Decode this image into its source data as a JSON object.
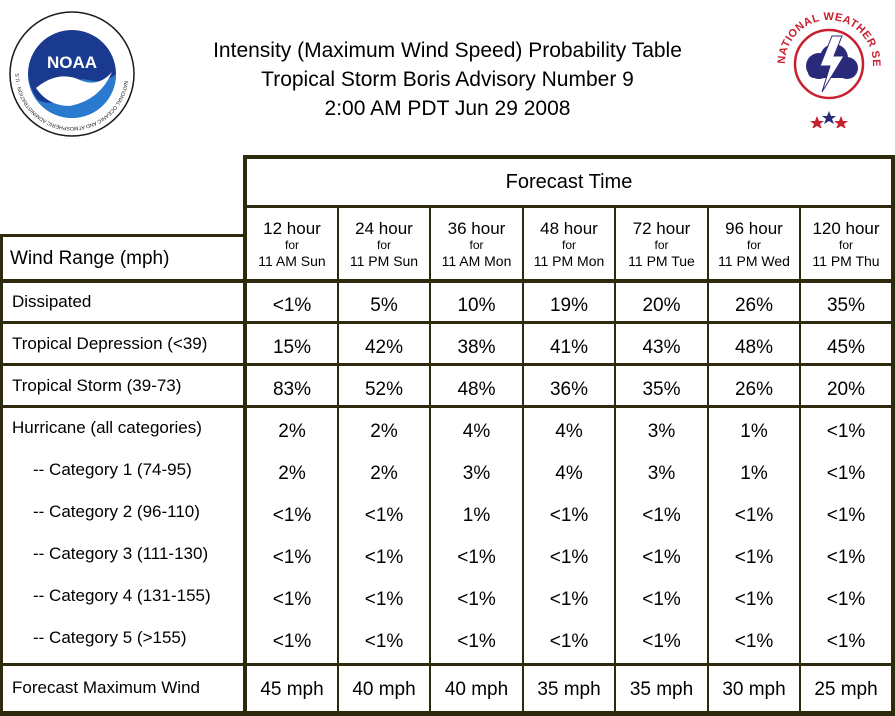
{
  "title": {
    "line1": "Intensity (Maximum Wind Speed) Probability Table",
    "line2": "Tropical Storm Boris Advisory Number 9",
    "line3": "2:00 AM PDT Jun 29 2008"
  },
  "logos": {
    "left": {
      "icon": "noaa-logo",
      "text": "NOAA",
      "ring_text": "NATIONAL OCEANIC AND ATMOSPHERIC ADMINISTRATION · U.S. DEPARTMENT OF COMMERCE"
    },
    "right": {
      "icon": "nws-logo",
      "ring_text": "NATIONAL WEATHER SERVICE"
    }
  },
  "table": {
    "forecast_time_label": "Forecast Time",
    "row_header_label": "Wind Range (mph)",
    "columns": [
      {
        "hour": "12 hour",
        "for": "for",
        "time": "11 AM Sun"
      },
      {
        "hour": "24 hour",
        "for": "for",
        "time": "11 PM Sun"
      },
      {
        "hour": "36 hour",
        "for": "for",
        "time": "11 AM Mon"
      },
      {
        "hour": "48 hour",
        "for": "for",
        "time": "11 PM Mon"
      },
      {
        "hour": "72 hour",
        "for": "for",
        "time": "11 PM Tue"
      },
      {
        "hour": "96 hour",
        "for": "for",
        "time": "11 PM Wed"
      },
      {
        "hour": "120 hour",
        "for": "for",
        "time": "11 PM Thu"
      }
    ],
    "rows": [
      {
        "label": "Dissipated",
        "values": [
          "<1%",
          "5%",
          "10%",
          "19%",
          "20%",
          "26%",
          "35%"
        ]
      },
      {
        "label": "Tropical Depression (<39)",
        "values": [
          "15%",
          "42%",
          "38%",
          "41%",
          "43%",
          "48%",
          "45%"
        ]
      },
      {
        "label": "Tropical Storm (39-73)",
        "values": [
          "83%",
          "52%",
          "48%",
          "36%",
          "35%",
          "26%",
          "20%"
        ]
      },
      {
        "label": "Hurricane (all categories)",
        "values": [
          "2%",
          "2%",
          "4%",
          "4%",
          "3%",
          "1%",
          "<1%"
        ]
      },
      {
        "label": "-- Category 1 (74-95)",
        "values": [
          "2%",
          "2%",
          "3%",
          "4%",
          "3%",
          "1%",
          "<1%"
        ]
      },
      {
        "label": "-- Category 2 (96-110)",
        "values": [
          "<1%",
          "<1%",
          "1%",
          "<1%",
          "<1%",
          "<1%",
          "<1%"
        ]
      },
      {
        "label": "-- Category 3 (111-130)",
        "values": [
          "<1%",
          "<1%",
          "<1%",
          "<1%",
          "<1%",
          "<1%",
          "<1%"
        ]
      },
      {
        "label": "-- Category 4 (131-155)",
        "values": [
          "<1%",
          "<1%",
          "<1%",
          "<1%",
          "<1%",
          "<1%",
          "<1%"
        ]
      },
      {
        "label": "-- Category 5 (>155)",
        "values": [
          "<1%",
          "<1%",
          "<1%",
          "<1%",
          "<1%",
          "<1%",
          "<1%"
        ]
      },
      {
        "label": "Forecast Maximum Wind",
        "values": [
          "45 mph",
          "40 mph",
          "40 mph",
          "35 mph",
          "35 mph",
          "30 mph",
          "25 mph"
        ]
      }
    ]
  },
  "colors": {
    "border": "#2d2a0e",
    "noaa_blue": "#1a3a8f",
    "nws_red": "#c8202f"
  }
}
